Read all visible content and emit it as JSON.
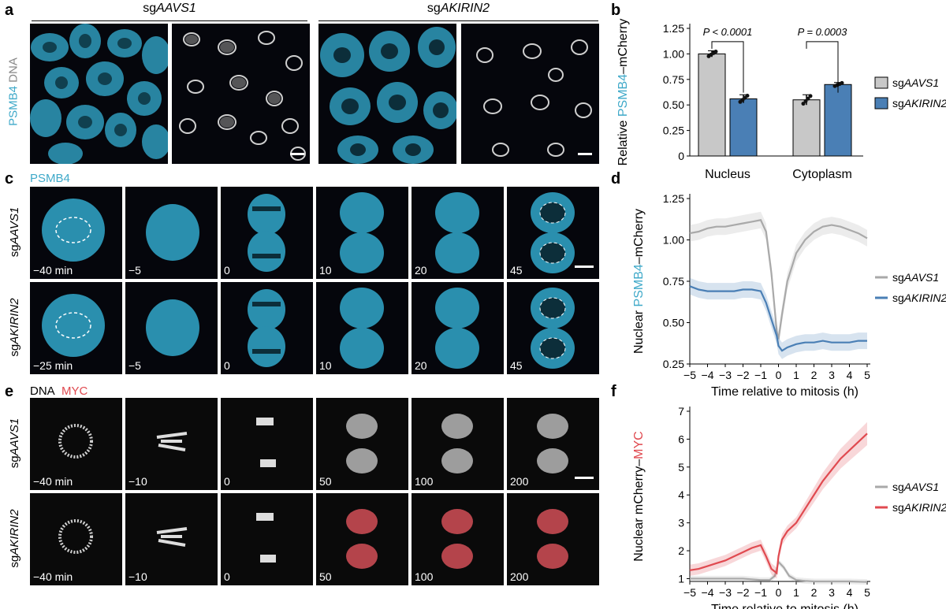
{
  "panel_letters": {
    "a": "a",
    "b": "b",
    "c": "c",
    "d": "d",
    "e": "e",
    "f": "f"
  },
  "groups": {
    "aavs1": "sgAAVS1",
    "akirin2": "sgAKIRIN2"
  },
  "stain_labels": {
    "psmb4": "PSMB4",
    "dna": "DNA",
    "myc": "MYC"
  },
  "colors": {
    "cyan": "#3fa9c9",
    "blue": "#4a7fb5",
    "grey": "#a9a9a9",
    "red": "#e04a50",
    "greybar": "#c8c8c8"
  },
  "panel_c": {
    "row_labels": [
      "sgAAVS1",
      "sgAKIRIN2"
    ],
    "times_top": [
      "−40 min",
      "−5",
      "0",
      "10",
      "20",
      "45"
    ],
    "times_bottom": [
      "−25 min",
      "−5",
      "0",
      "10",
      "20",
      "45"
    ]
  },
  "panel_e": {
    "row_labels": [
      "sgAAVS1",
      "sgAKIRIN2"
    ],
    "times": [
      "−40 min",
      "−10",
      "0",
      "50",
      "100",
      "200"
    ]
  },
  "chart_data": [
    {
      "panel": "b",
      "type": "bar",
      "categories": [
        "Nucleus",
        "Cytoplasm"
      ],
      "series": [
        {
          "name": "sgAAVS1",
          "values": [
            1.0,
            0.55
          ],
          "error": [
            0.03,
            0.05
          ]
        },
        {
          "name": "sgAKIRIN2",
          "values": [
            0.56,
            0.7
          ],
          "error": [
            0.04,
            0.02
          ]
        }
      ],
      "ylabel": "Relative PSMB4–mCherry",
      "ylim": [
        0,
        1.25
      ],
      "yticks": [
        "0",
        "0.25",
        "0.50",
        "0.75",
        "1.00",
        "1.25"
      ],
      "annotations": [
        "P < 0.0001",
        "P = 0.0003"
      ],
      "legend": "right"
    },
    {
      "panel": "d",
      "type": "line",
      "xlabel": "Time relative to mitosis (h)",
      "ylabel": "Nuclear PSMB4–mCherry",
      "xlim": [
        -5,
        5
      ],
      "ylim": [
        0.25,
        1.25
      ],
      "xticks": [
        "−5",
        "−4",
        "−3",
        "−2",
        "−1",
        "0",
        "1",
        "2",
        "3",
        "4",
        "5"
      ],
      "yticks": [
        "0.25",
        "0.50",
        "0.75",
        "1.00",
        "1.25"
      ],
      "series": [
        {
          "name": "sgAAVS1",
          "x": [
            -5,
            -4.5,
            -4,
            -3.5,
            -3,
            -2.5,
            -2,
            -1.5,
            -1,
            -0.7,
            -0.4,
            -0.1,
            0,
            0.2,
            0.5,
            1,
            1.5,
            2,
            2.5,
            3,
            3.5,
            4,
            4.5,
            5
          ],
          "y": [
            1.04,
            1.05,
            1.07,
            1.08,
            1.08,
            1.09,
            1.1,
            1.11,
            1.12,
            1.05,
            0.8,
            0.45,
            0.4,
            0.55,
            0.75,
            0.92,
            1.0,
            1.05,
            1.08,
            1.09,
            1.08,
            1.06,
            1.04,
            1.01
          ]
        },
        {
          "name": "sgAKIRIN2",
          "x": [
            -5,
            -4.5,
            -4,
            -3.5,
            -3,
            -2.5,
            -2,
            -1.5,
            -1,
            -0.7,
            -0.4,
            -0.1,
            0,
            0.2,
            0.5,
            1,
            1.5,
            2,
            2.5,
            3,
            3.5,
            4,
            4.5,
            5
          ],
          "y": [
            0.72,
            0.7,
            0.69,
            0.69,
            0.69,
            0.69,
            0.7,
            0.7,
            0.69,
            0.62,
            0.52,
            0.42,
            0.36,
            0.33,
            0.35,
            0.37,
            0.38,
            0.38,
            0.39,
            0.38,
            0.38,
            0.38,
            0.39,
            0.39
          ]
        }
      ],
      "legend": "right"
    },
    {
      "panel": "f",
      "type": "line",
      "xlabel": "Time relative to mitosis (h)",
      "ylabel": "Nuclear mCherry–MYC",
      "xlim": [
        -5,
        5
      ],
      "ylim": [
        0.9,
        7
      ],
      "xticks": [
        "−5",
        "−4",
        "−3",
        "−2",
        "−1",
        "0",
        "1",
        "2",
        "3",
        "4",
        "5"
      ],
      "yticks": [
        "1",
        "2",
        "3",
        "4",
        "5",
        "6",
        "7"
      ],
      "series": [
        {
          "name": "sgAAVS1",
          "x": [
            -5,
            -4,
            -3,
            -2,
            -1,
            -0.5,
            -0.2,
            0,
            0.3,
            0.6,
            1,
            1.5,
            2,
            3,
            4,
            5
          ],
          "y": [
            1.0,
            1.0,
            1.0,
            1.0,
            0.95,
            0.95,
            1.1,
            1.6,
            1.4,
            1.1,
            0.95,
            0.92,
            0.9,
            0.9,
            0.9,
            0.88
          ]
        },
        {
          "name": "sgAKIRIN2",
          "x": [
            -5,
            -4.5,
            -4,
            -3.5,
            -3,
            -2.5,
            -2,
            -1.5,
            -1,
            -0.7,
            -0.4,
            -0.1,
            0,
            0.2,
            0.5,
            1,
            1.5,
            2,
            2.5,
            3,
            3.5,
            4,
            4.5,
            5
          ],
          "y": [
            1.3,
            1.35,
            1.45,
            1.55,
            1.65,
            1.8,
            1.95,
            2.1,
            2.2,
            1.8,
            1.35,
            1.2,
            1.8,
            2.4,
            2.7,
            3.0,
            3.5,
            4.0,
            4.5,
            4.9,
            5.3,
            5.6,
            5.9,
            6.2
          ]
        }
      ],
      "legend": "right"
    }
  ]
}
